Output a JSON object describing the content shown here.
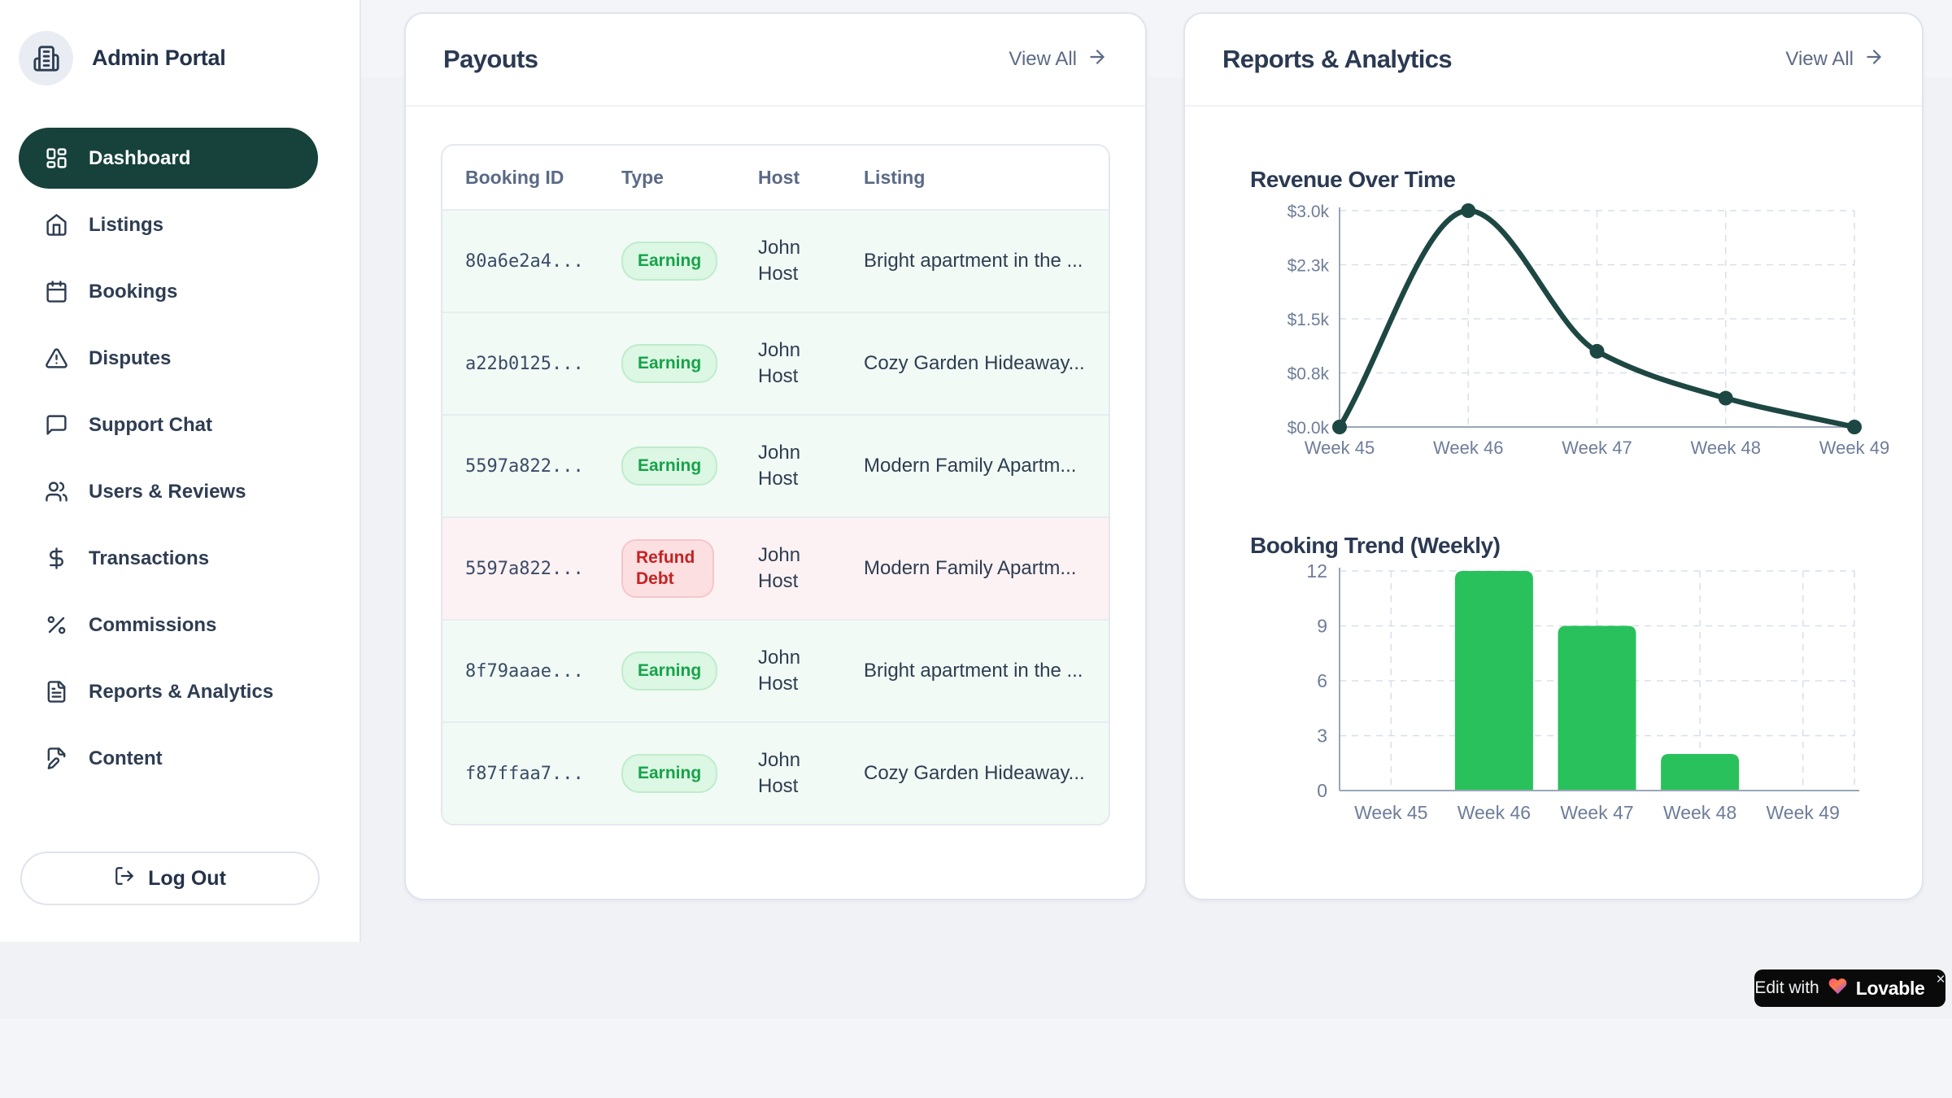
{
  "app": {
    "title": "Admin Portal"
  },
  "sidebar": {
    "items": [
      {
        "label": "Dashboard",
        "icon": "dashboard-icon",
        "active": true
      },
      {
        "label": "Listings",
        "icon": "home-icon",
        "active": false
      },
      {
        "label": "Bookings",
        "icon": "calendar-icon",
        "active": false
      },
      {
        "label": "Disputes",
        "icon": "alert-triangle-icon",
        "active": false
      },
      {
        "label": "Support Chat",
        "icon": "message-square-icon",
        "active": false
      },
      {
        "label": "Users & Reviews",
        "icon": "users-icon",
        "active": false
      },
      {
        "label": "Transactions",
        "icon": "dollar-icon",
        "active": false
      },
      {
        "label": "Commissions",
        "icon": "percent-icon",
        "active": false
      },
      {
        "label": "Reports & Analytics",
        "icon": "file-text-icon",
        "active": false
      },
      {
        "label": "Content",
        "icon": "file-pen-icon",
        "active": false
      }
    ],
    "logout_label": "Log Out"
  },
  "payouts": {
    "title": "Payouts",
    "view_all_label": "View All",
    "columns": [
      "Booking ID",
      "Type",
      "Host",
      "Listing"
    ],
    "rows": [
      {
        "booking_id": "80a6e2a4...",
        "type": "Earning",
        "variant": "earning",
        "host": "John Host",
        "listing": "Bright apartment in the ..."
      },
      {
        "booking_id": "a22b0125...",
        "type": "Earning",
        "variant": "earning",
        "host": "John Host",
        "listing": "Cozy Garden Hideaway..."
      },
      {
        "booking_id": "5597a822...",
        "type": "Earning",
        "variant": "earning",
        "host": "John Host",
        "listing": "Modern Family Apartm..."
      },
      {
        "booking_id": "5597a822...",
        "type": "Refund Debt",
        "variant": "refund",
        "host": "John Host",
        "listing": "Modern Family Apartm..."
      },
      {
        "booking_id": "8f79aaae...",
        "type": "Earning",
        "variant": "earning",
        "host": "John Host",
        "listing": "Bright apartment in the ..."
      },
      {
        "booking_id": "f87ffaa7...",
        "type": "Earning",
        "variant": "earning",
        "host": "John Host",
        "listing": "Cozy Garden Hideaway..."
      }
    ]
  },
  "reports": {
    "title": "Reports & Analytics",
    "view_all_label": "View All"
  },
  "chart_data": [
    {
      "type": "line",
      "title": "Revenue Over Time",
      "x": [
        "Week 45",
        "Week 46",
        "Week 47",
        "Week 48",
        "Week 49"
      ],
      "values": [
        0,
        3000,
        1050,
        400,
        0
      ],
      "ylim": [
        0,
        3000
      ],
      "y_ticks": [
        0,
        750,
        1500,
        2250,
        3000
      ],
      "y_tick_labels": [
        "$0.0k",
        "$0.8k",
        "$1.5k",
        "$2.3k",
        "$3.0k"
      ],
      "line_color": "#1d4742",
      "grid": "dashed",
      "legend": false
    },
    {
      "type": "bar",
      "title": "Booking Trend (Weekly)",
      "categories": [
        "Week 45",
        "Week 46",
        "Week 47",
        "Week 48",
        "Week 49"
      ],
      "values": [
        0,
        12,
        9,
        2,
        0
      ],
      "ylim": [
        0,
        12
      ],
      "y_ticks": [
        0,
        3,
        6,
        9,
        12
      ],
      "bar_color": "#28c15c",
      "grid": "dashed",
      "legend": false
    }
  ],
  "lovable_badge": {
    "prefix": "Edit with",
    "brand": "Lovable",
    "close_label": "×"
  },
  "colors": {
    "sidebar_active_bg": "#16423b",
    "earning_text": "#16a34a",
    "earning_bg": "#dcf7e3",
    "refund_text": "#c52222",
    "refund_bg": "#fcdfe1",
    "line": "#1d4742",
    "bar": "#28c15c"
  }
}
